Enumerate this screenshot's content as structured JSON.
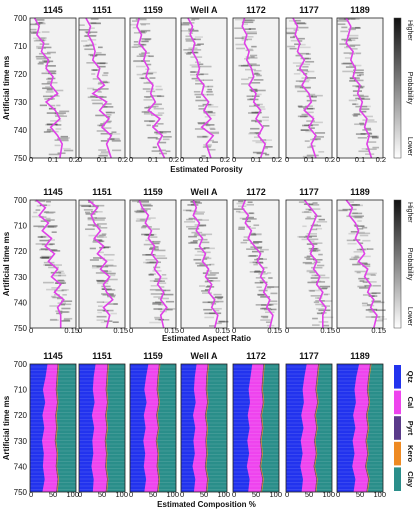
{
  "chart_data": [
    {
      "type": "heatmap",
      "xlabel": "Estimated Porosity",
      "ylabel": "Artificial time ms",
      "ylim": [
        700,
        750
      ],
      "xlim": [
        0,
        0.2
      ],
      "yticks": [
        "700",
        "710",
        "720",
        "730",
        "740",
        "750"
      ],
      "xticks": [
        "0",
        "0.1",
        "0.2"
      ],
      "wells": [
        "1145",
        "1151",
        "1159",
        "Well A",
        "1172",
        "1177",
        "1189"
      ],
      "colorbar": {
        "top": "Higher",
        "middle": "Probability",
        "bottom": "Lower"
      },
      "curve_color": "#e040e8",
      "series": [
        {
          "well": "1145",
          "x": [
            0.02,
            0.04,
            0.03,
            0.06,
            0.05,
            0.08,
            0.07,
            0.1,
            0.09,
            0.12,
            0.07,
            0.11,
            0.13,
            0.09,
            0.12,
            0.14,
            0.13
          ],
          "y": [
            700,
            703,
            706,
            709,
            712,
            715,
            718,
            721,
            724,
            727,
            730,
            733,
            736,
            739,
            742,
            745,
            750
          ]
        },
        {
          "well": "1151",
          "x": [
            0.03,
            0.05,
            0.04,
            0.06,
            0.07,
            0.06,
            0.09,
            0.08,
            0.11,
            0.06,
            0.12,
            0.09,
            0.13,
            0.1,
            0.14,
            0.12,
            0.14
          ],
          "y": [
            700,
            703,
            706,
            709,
            712,
            715,
            718,
            721,
            724,
            727,
            730,
            733,
            736,
            739,
            742,
            745,
            750
          ]
        },
        {
          "well": "1159",
          "x": [
            0.04,
            0.03,
            0.05,
            0.04,
            0.07,
            0.06,
            0.08,
            0.07,
            0.1,
            0.09,
            0.11,
            0.08,
            0.13,
            0.1,
            0.14,
            0.12,
            0.15
          ],
          "y": [
            700,
            703,
            706,
            709,
            712,
            715,
            718,
            721,
            724,
            727,
            730,
            733,
            736,
            739,
            742,
            745,
            750
          ]
        },
        {
          "well": "Well A",
          "x": [
            0.03,
            0.05,
            0.04,
            0.06,
            0.05,
            0.07,
            0.08,
            0.07,
            0.1,
            0.09,
            0.12,
            0.1,
            0.13,
            0.09,
            0.14,
            0.11,
            0.13
          ],
          "y": [
            700,
            703,
            706,
            709,
            712,
            715,
            718,
            721,
            724,
            727,
            730,
            733,
            736,
            739,
            742,
            745,
            750
          ]
        },
        {
          "well": "1172",
          "x": [
            0.05,
            0.04,
            0.06,
            0.05,
            0.07,
            0.06,
            0.08,
            0.09,
            0.07,
            0.1,
            0.09,
            0.12,
            0.1,
            0.13,
            0.11,
            0.14,
            0.12
          ],
          "y": [
            700,
            703,
            706,
            709,
            712,
            715,
            718,
            721,
            724,
            727,
            730,
            733,
            736,
            739,
            742,
            745,
            750
          ]
        },
        {
          "well": "1177",
          "x": [
            0.03,
            0.05,
            0.04,
            0.06,
            0.05,
            0.08,
            0.06,
            0.09,
            0.07,
            0.1,
            0.11,
            0.08,
            0.12,
            0.1,
            0.13,
            0.11,
            0.13
          ],
          "y": [
            700,
            703,
            706,
            709,
            712,
            715,
            718,
            721,
            724,
            727,
            730,
            733,
            736,
            739,
            742,
            745,
            750
          ]
        },
        {
          "well": "1189",
          "x": [
            0.04,
            0.06,
            0.05,
            0.04,
            0.07,
            0.06,
            0.08,
            0.07,
            0.1,
            0.09,
            0.11,
            0.1,
            0.13,
            0.12,
            0.14,
            0.13,
            0.15
          ],
          "y": [
            700,
            703,
            706,
            709,
            712,
            715,
            718,
            721,
            724,
            727,
            730,
            733,
            736,
            739,
            742,
            745,
            750
          ]
        }
      ]
    },
    {
      "type": "heatmap",
      "xlabel": "Estimated Aspect Ratio",
      "ylabel": "Artificial time ms",
      "ylim": [
        700,
        750
      ],
      "xlim": [
        0,
        0.15
      ],
      "yticks": [
        "700",
        "710",
        "720",
        "730",
        "740",
        "750"
      ],
      "xticks": [
        "0",
        "0.15"
      ],
      "wells": [
        "1145",
        "1151",
        "1159",
        "Well A",
        "1172",
        "1177",
        "1189"
      ],
      "colorbar": {
        "top": "Higher",
        "middle": "Probability",
        "bottom": "Lower"
      },
      "curve_color": "#e040e8",
      "series": [
        {
          "well": "1145",
          "x": [
            0.02,
            0.05,
            0.03,
            0.06,
            0.04,
            0.07,
            0.05,
            0.08,
            0.06,
            0.09,
            0.07,
            0.1,
            0.08,
            0.11,
            0.09,
            0.1,
            0.1
          ],
          "y": [
            700,
            703,
            706,
            709,
            712,
            715,
            718,
            721,
            724,
            727,
            730,
            733,
            736,
            739,
            742,
            745,
            750
          ]
        },
        {
          "well": "1151",
          "x": [
            0.03,
            0.06,
            0.04,
            0.05,
            0.07,
            0.05,
            0.08,
            0.06,
            0.09,
            0.07,
            0.1,
            0.08,
            0.09,
            0.11,
            0.08,
            0.1,
            0.09
          ],
          "y": [
            700,
            703,
            706,
            709,
            712,
            715,
            718,
            721,
            724,
            727,
            730,
            733,
            736,
            739,
            742,
            745,
            750
          ]
        },
        {
          "well": "1159",
          "x": [
            0.03,
            0.04,
            0.06,
            0.05,
            0.07,
            0.06,
            0.08,
            0.07,
            0.09,
            0.08,
            0.1,
            0.09,
            0.11,
            0.1,
            0.12,
            0.1,
            0.11
          ],
          "y": [
            700,
            703,
            706,
            709,
            712,
            715,
            718,
            721,
            724,
            727,
            730,
            733,
            736,
            739,
            742,
            745,
            750
          ]
        },
        {
          "well": "Well A",
          "x": [
            0.04,
            0.05,
            0.04,
            0.06,
            0.05,
            0.07,
            0.06,
            0.08,
            0.07,
            0.09,
            0.08,
            0.1,
            0.09,
            0.11,
            0.1,
            0.12,
            0.11
          ],
          "y": [
            700,
            703,
            706,
            709,
            712,
            715,
            718,
            721,
            724,
            727,
            730,
            733,
            736,
            739,
            742,
            745,
            750
          ]
        },
        {
          "well": "1172",
          "x": [
            0.04,
            0.03,
            0.05,
            0.04,
            0.06,
            0.05,
            0.07,
            0.09,
            0.08,
            0.1,
            0.09,
            0.11,
            0.1,
            0.12,
            0.11,
            0.13,
            0.12
          ],
          "y": [
            700,
            703,
            706,
            709,
            712,
            715,
            718,
            721,
            724,
            727,
            730,
            733,
            736,
            739,
            742,
            745,
            750
          ]
        },
        {
          "well": "1177",
          "x": [
            0.06,
            0.08,
            0.1,
            0.09,
            0.08,
            0.07,
            0.09,
            0.08,
            0.1,
            0.09,
            0.11,
            0.1,
            0.12,
            0.11,
            0.13,
            0.12,
            0.12
          ],
          "y": [
            700,
            703,
            706,
            709,
            712,
            715,
            718,
            721,
            724,
            727,
            730,
            733,
            736,
            739,
            742,
            745,
            750
          ]
        },
        {
          "well": "1189",
          "x": [
            0.03,
            0.05,
            0.04,
            0.06,
            0.07,
            0.06,
            0.08,
            0.09,
            0.07,
            0.1,
            0.09,
            0.11,
            0.1,
            0.12,
            0.11,
            0.13,
            0.12
          ],
          "y": [
            700,
            703,
            706,
            709,
            712,
            715,
            718,
            721,
            724,
            727,
            730,
            733,
            736,
            739,
            742,
            745,
            750
          ]
        }
      ]
    },
    {
      "type": "area",
      "xlabel": "Estimated Composition %",
      "ylabel": "Artificial time ms",
      "ylim": [
        700,
        750
      ],
      "xlim": [
        0,
        100
      ],
      "yticks": [
        "700",
        "710",
        "720",
        "730",
        "740",
        "750"
      ],
      "xticks": [
        "0",
        "50",
        "100"
      ],
      "wells": [
        "1145",
        "1151",
        "1159",
        "Well A",
        "1172",
        "1177",
        "1189"
      ],
      "legend": [
        {
          "name": "Qtz",
          "color": "#2233ee"
        },
        {
          "name": "Cal",
          "color": "#ee44ee"
        },
        {
          "name": "Pyrt",
          "color": "#5a3a8a"
        },
        {
          "name": "Kero",
          "color": "#ee8a22"
        },
        {
          "name": "Clay",
          "color": "#2a8e8a"
        }
      ],
      "legend_position": "right",
      "boundaries_y": [
        700,
        705,
        710,
        715,
        720,
        725,
        730,
        735,
        740,
        745,
        750
      ],
      "series": [
        {
          "well": "1145",
          "qtz_end": [
            38,
            34,
            28,
            33,
            27,
            31,
            26,
            30,
            28,
            32,
            27
          ],
          "cal_end": [
            60,
            58,
            56,
            59,
            55,
            57,
            54,
            58,
            56,
            60,
            57
          ]
        },
        {
          "well": "1151",
          "qtz_end": [
            36,
            32,
            30,
            34,
            28,
            33,
            29,
            31,
            27,
            32,
            30
          ],
          "cal_end": [
            62,
            60,
            58,
            61,
            57,
            60,
            56,
            59,
            57,
            61,
            58
          ]
        },
        {
          "well": "1159",
          "qtz_end": [
            40,
            35,
            31,
            36,
            30,
            34,
            29,
            33,
            30,
            35,
            31
          ],
          "cal_end": [
            63,
            60,
            58,
            62,
            57,
            61,
            56,
            60,
            58,
            62,
            59
          ]
        },
        {
          "well": "Well A",
          "qtz_end": [
            34,
            30,
            28,
            32,
            26,
            31,
            27,
            30,
            25,
            31,
            28
          ],
          "cal_end": [
            58,
            55,
            54,
            57,
            52,
            56,
            53,
            55,
            52,
            57,
            54
          ]
        },
        {
          "well": "1172",
          "qtz_end": [
            42,
            38,
            34,
            37,
            32,
            36,
            31,
            35,
            30,
            36,
            33
          ],
          "cal_end": [
            66,
            64,
            62,
            65,
            60,
            63,
            59,
            62,
            58,
            64,
            60
          ]
        },
        {
          "well": "1177",
          "qtz_end": [
            45,
            40,
            36,
            39,
            33,
            38,
            32,
            36,
            31,
            37,
            34
          ],
          "cal_end": [
            70,
            67,
            64,
            68,
            62,
            66,
            61,
            65,
            60,
            66,
            63
          ]
        },
        {
          "well": "1189",
          "qtz_end": [
            48,
            42,
            38,
            41,
            35,
            40,
            34,
            38,
            33,
            40,
            36
          ],
          "cal_end": [
            72,
            68,
            65,
            69,
            63,
            67,
            62,
            66,
            61,
            68,
            64
          ]
        }
      ]
    }
  ]
}
